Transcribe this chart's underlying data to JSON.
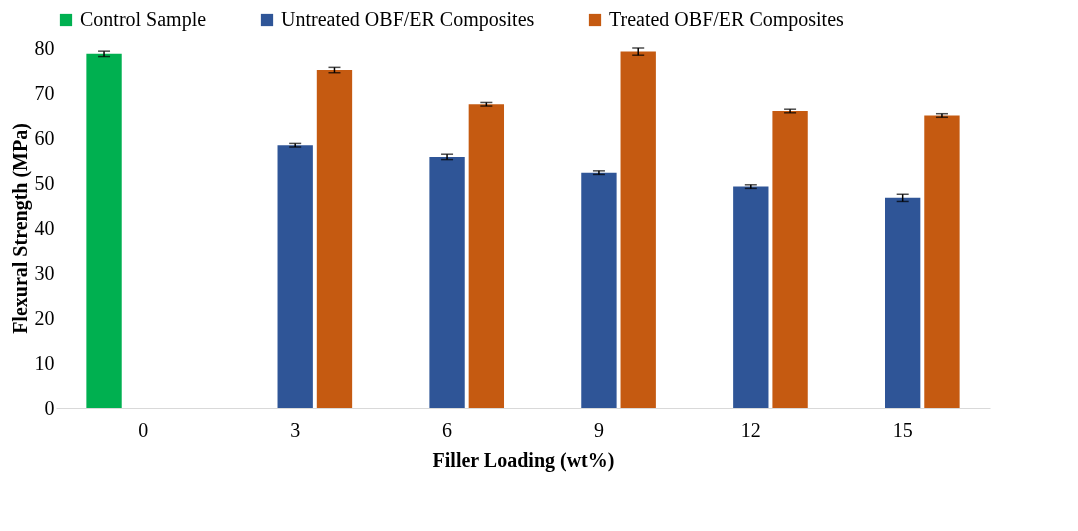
{
  "chart_data": {
    "type": "bar",
    "xlabel": "Filler Loading (wt%)",
    "ylabel": "Flexural Strength (MPa)",
    "categories": [
      "0",
      "3",
      "6",
      "9",
      "12",
      "15"
    ],
    "series": [
      {
        "name": "Control Sample",
        "color": "#00b050",
        "values": [
          78.7,
          null,
          null,
          null,
          null,
          null
        ],
        "errors": [
          0.6,
          null,
          null,
          null,
          null,
          null
        ]
      },
      {
        "name": "Untreated OBF/ER Composites",
        "color": "#2f5597",
        "values": [
          null,
          58.4,
          55.8,
          52.3,
          49.2,
          46.7
        ],
        "errors": [
          null,
          0.4,
          0.6,
          0.4,
          0.4,
          0.8
        ]
      },
      {
        "name": "Treated OBF/ER Composites",
        "color": "#c55a11",
        "values": [
          null,
          75.1,
          67.5,
          79.2,
          66.0,
          65.0
        ],
        "errors": [
          null,
          0.6,
          0.4,
          0.8,
          0.4,
          0.4
        ]
      }
    ],
    "ylim": [
      0,
      80
    ],
    "yticks": [
      0,
      10,
      20,
      30,
      40,
      50,
      60,
      70,
      80
    ],
    "grid": false,
    "legend": "top"
  }
}
